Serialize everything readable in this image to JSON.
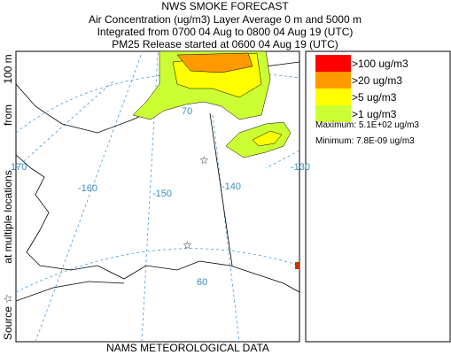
{
  "header": {
    "title": "NWS SMOKE FORECAST",
    "lines": [
      "Air Concentration (ug/m3) Layer Average    0 m and  5000 m",
      "Integrated from 0700 04 Aug to 0800 04 Aug 19 (UTC)",
      "PM25 Release started at 0600 04 Aug 19 (UTC)"
    ]
  },
  "legend": {
    "items": [
      {
        "label": ">100 ug/m3",
        "color": "#ff0000"
      },
      {
        "label": ">20 ug/m3",
        "color": "#ff9900"
      },
      {
        "label": ">5 ug/m3",
        "color": "#ffff00"
      },
      {
        "label": ">1 ug/m3",
        "color": "#ccff33"
      }
    ],
    "maximum": "Maximum: 5.1E+02 ug/m3",
    "minimum": "Minimum: 7.8E-09 ug/m3"
  },
  "side_label": [
    "Source ☆",
    "at multiple locations",
    "from",
    "100 m"
  ],
  "footer": "NAMS METEOROLOGICAL DATA",
  "map_labels": [
    "70",
    "170",
    "-160",
    "-150",
    "-140",
    "-130",
    "60"
  ]
}
